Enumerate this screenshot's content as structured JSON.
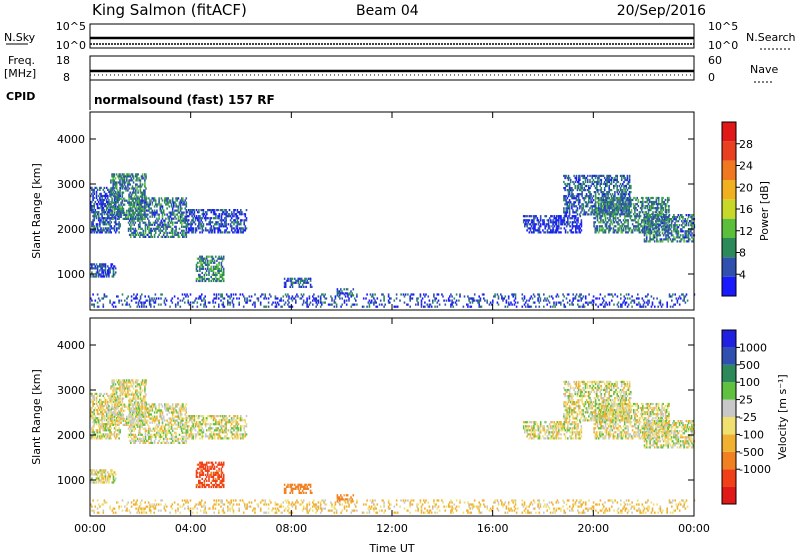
{
  "header": {
    "station": "King Salmon (fitACF)",
    "beam": "Beam 04",
    "date": "20/Sep/2016"
  },
  "top_panels": {
    "nsky": {
      "label": "N.Sky",
      "ticks": [
        "10^5",
        "10^0"
      ]
    },
    "nsearch": {
      "label": "N.Search",
      "ticks": [
        "10^5",
        "10^0"
      ]
    },
    "freq": {
      "label_line1": "Freq.",
      "label_line2": "[MHz]",
      "ticks": [
        "18",
        "8"
      ]
    },
    "nave": {
      "label": "Nave",
      "ticks": [
        "60",
        "0"
      ]
    },
    "cpid": {
      "label": "CPID",
      "value": "normalsound (fast) 157 RF"
    }
  },
  "colors": {
    "power_scale": [
      "#1a1aff",
      "#3050b0",
      "#2c8a5a",
      "#5cbf3c",
      "#c8d828",
      "#f0b020",
      "#f07820",
      "#e84020",
      "#e01818"
    ],
    "velocity_scale": [
      "#e01818",
      "#f04018",
      "#f08020",
      "#f0b030",
      "#f0e070",
      "#c8c8c8",
      "#60c040",
      "#2c8a5a",
      "#3050b0",
      "#2020e0"
    ]
  },
  "chart_data": [
    {
      "type": "heatmap",
      "quantity": "power",
      "ylabel": "Slant Range [km]",
      "xlabel": "",
      "x_ticks": [
        "00:00",
        "04:00",
        "08:00",
        "12:00",
        "16:00",
        "20:00",
        "00:00"
      ],
      "y_ticks": [
        1000,
        2000,
        3000,
        4000
      ],
      "xlim_hours": [
        0,
        24
      ],
      "ylim_km": [
        200,
        4600
      ],
      "colorbar": {
        "title": "Power [dB]",
        "labels": [
          "4",
          "8",
          "12",
          "16",
          "20",
          "24",
          "28"
        ],
        "range": [
          0,
          32
        ]
      },
      "regions": [
        {
          "t": [
            0.0,
            1.2
          ],
          "r": [
            1900,
            2900
          ],
          "level": 6
        },
        {
          "t": [
            0.8,
            2.2
          ],
          "r": [
            2200,
            3200
          ],
          "level": 9
        },
        {
          "t": [
            1.5,
            3.8
          ],
          "r": [
            1800,
            2700
          ],
          "level": 8
        },
        {
          "t": [
            3.8,
            6.2
          ],
          "r": [
            1900,
            2400
          ],
          "level": 5
        },
        {
          "t": [
            0.0,
            1.0
          ],
          "r": [
            920,
            1200
          ],
          "level": 6
        },
        {
          "t": [
            4.2,
            5.3
          ],
          "r": [
            820,
            1400
          ],
          "level": 10
        },
        {
          "t": [
            7.7,
            8.8
          ],
          "r": [
            690,
            880
          ],
          "level": 6
        },
        {
          "t": [
            9.8,
            10.5
          ],
          "r": [
            500,
            640
          ],
          "level": 6
        },
        {
          "t": [
            0.0,
            24.0
          ],
          "r": [
            250,
            560
          ],
          "level": 5
        },
        {
          "t": [
            18.8,
            21.5
          ],
          "r": [
            2300,
            3200
          ],
          "level": 7
        },
        {
          "t": [
            20.0,
            23.0
          ],
          "r": [
            1900,
            2700
          ],
          "level": 9
        },
        {
          "t": [
            22.0,
            24.0
          ],
          "r": [
            1700,
            2300
          ],
          "level": 8
        },
        {
          "t": [
            17.2,
            19.5
          ],
          "r": [
            1900,
            2300
          ],
          "level": 4
        }
      ]
    },
    {
      "type": "heatmap",
      "quantity": "velocity",
      "ylabel": "Slant Range [km]",
      "xlabel": "Time UT",
      "x_ticks": [
        "00:00",
        "04:00",
        "08:00",
        "12:00",
        "16:00",
        "20:00",
        "00:00"
      ],
      "y_ticks": [
        1000,
        2000,
        3000,
        4000
      ],
      "xlim_hours": [
        0,
        24
      ],
      "ylim_km": [
        200,
        4600
      ],
      "colorbar": {
        "title": "Velocity [m s⁻¹]",
        "labels": [
          "1000",
          "500",
          "100",
          "25",
          "-25",
          "-100",
          "-500",
          "-1000"
        ]
      },
      "regions": [
        {
          "t": [
            0.0,
            1.2
          ],
          "r": [
            1900,
            2900
          ],
          "level": 0
        },
        {
          "t": [
            0.8,
            2.2
          ],
          "r": [
            2200,
            3200
          ],
          "level": 0
        },
        {
          "t": [
            1.5,
            3.8
          ],
          "r": [
            1800,
            2700
          ],
          "level": 0
        },
        {
          "t": [
            3.8,
            6.2
          ],
          "r": [
            1900,
            2400
          ],
          "level": 0
        },
        {
          "t": [
            0.0,
            1.0
          ],
          "r": [
            920,
            1200
          ],
          "level": 0
        },
        {
          "t": [
            4.2,
            5.3
          ],
          "r": [
            820,
            1400
          ],
          "level": -600
        },
        {
          "t": [
            7.7,
            8.8
          ],
          "r": [
            690,
            880
          ],
          "level": -300
        },
        {
          "t": [
            9.8,
            10.5
          ],
          "r": [
            500,
            640
          ],
          "level": -200
        },
        {
          "t": [
            0.0,
            24.0
          ],
          "r": [
            250,
            560
          ],
          "level": -30
        },
        {
          "t": [
            18.8,
            21.5
          ],
          "r": [
            2300,
            3200
          ],
          "level": 0
        },
        {
          "t": [
            20.0,
            23.0
          ],
          "r": [
            1900,
            2700
          ],
          "level": 0
        },
        {
          "t": [
            22.0,
            24.0
          ],
          "r": [
            1700,
            2300
          ],
          "level": 0
        },
        {
          "t": [
            17.2,
            19.5
          ],
          "r": [
            1900,
            2300
          ],
          "level": 0
        }
      ]
    }
  ]
}
